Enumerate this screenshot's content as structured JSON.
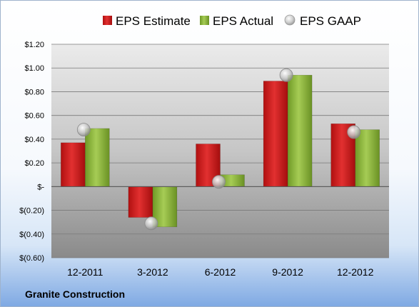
{
  "chart_data": {
    "type": "bar",
    "categories": [
      "12-2011",
      "3-2012",
      "6-2012",
      "9-2012",
      "12-2012"
    ],
    "series": [
      {
        "name": "EPS Estimate",
        "type": "bar",
        "color": "#cc1c1c",
        "values": [
          0.37,
          -0.26,
          0.36,
          0.89,
          0.53
        ]
      },
      {
        "name": "EPS Actual",
        "type": "bar",
        "color": "#8fba3c",
        "values": [
          0.49,
          -0.34,
          0.1,
          0.94,
          0.48
        ]
      },
      {
        "name": "EPS GAAP",
        "type": "scatter",
        "color": "#bdbdbd",
        "values": [
          0.48,
          -0.31,
          0.04,
          0.94,
          0.46
        ]
      }
    ],
    "ylim": [
      -0.6,
      1.2
    ],
    "yticks": [
      1.2,
      1.0,
      0.8,
      0.6,
      0.4,
      0.2,
      0.0,
      -0.2,
      -0.4,
      -0.6
    ],
    "ytick_labels": [
      "$1.20",
      "$1.00",
      "$0.80",
      "$0.60",
      "$0.40",
      "$0.20",
      "$-",
      "$(0.20)",
      "$(0.40)",
      "$(0.60)"
    ],
    "grid": true,
    "legend_position": "top"
  },
  "footer": {
    "company": "Granite Construction"
  }
}
